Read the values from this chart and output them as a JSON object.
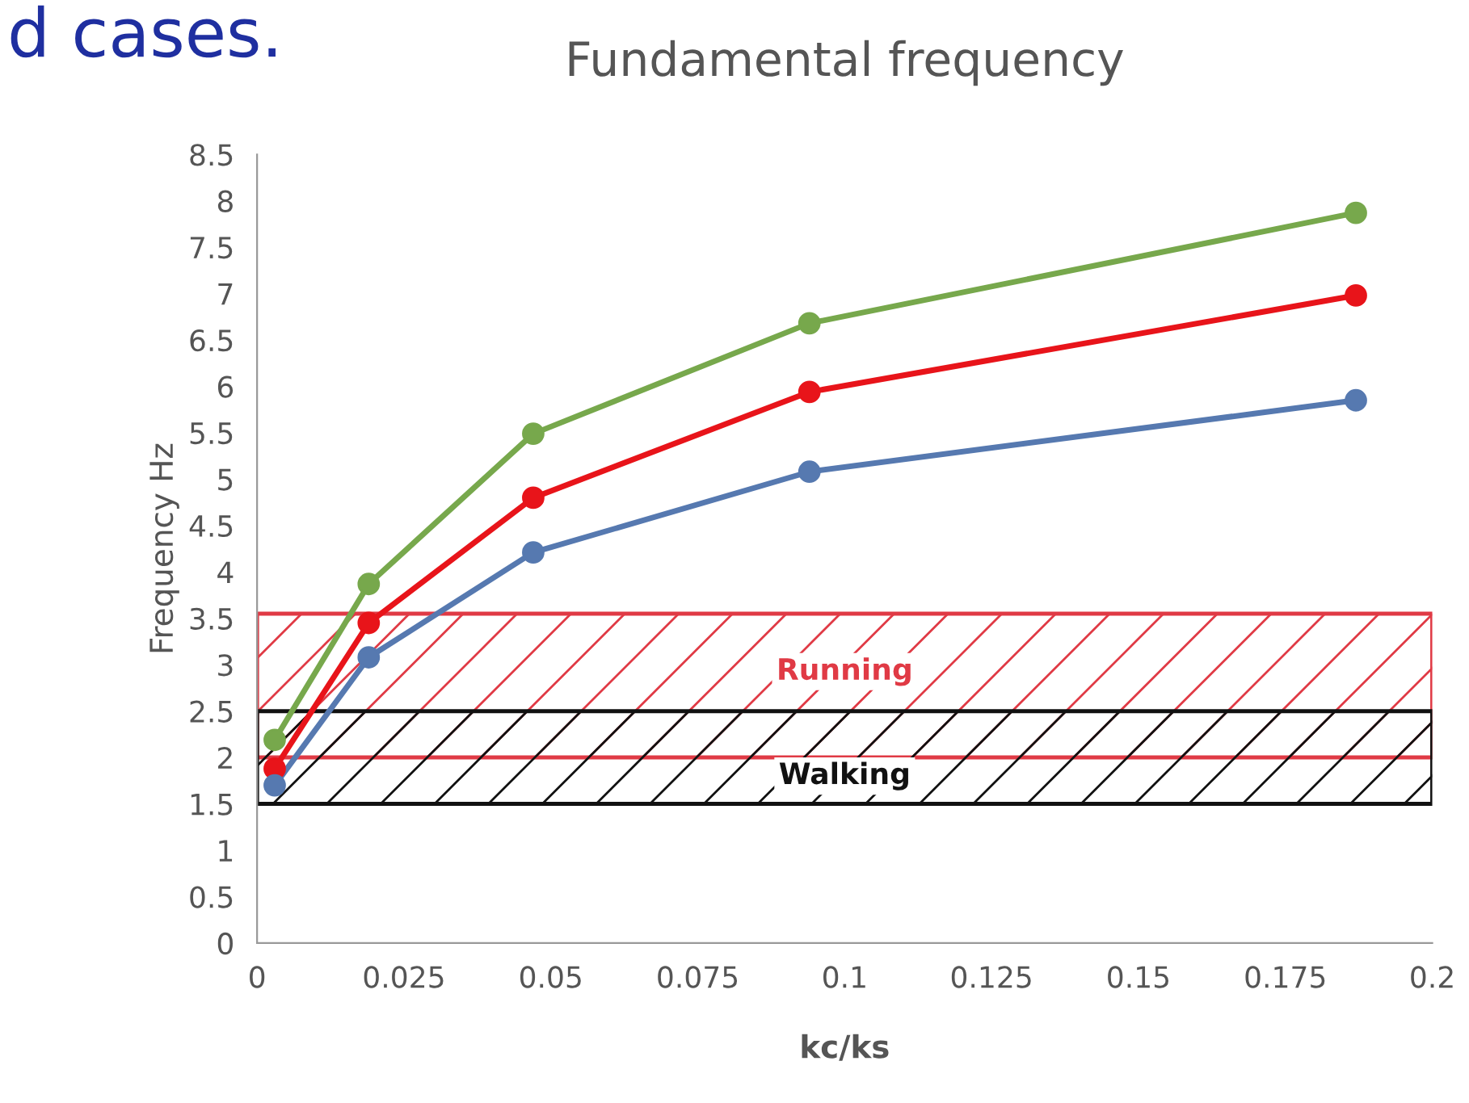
{
  "chart_data": {
    "type": "line",
    "title": "Fundamental frequency",
    "xlabel": "kc/ks",
    "ylabel": "Frequency Hz",
    "annotations": [
      "d cases."
    ],
    "x": [
      0.003,
      0.019,
      0.047,
      0.094,
      0.187
    ],
    "series": [
      {
        "color": "#77a84c",
        "values": [
          2.19,
          3.87,
          5.49,
          6.68,
          7.87
        ]
      },
      {
        "color": "#e8141a",
        "values": [
          1.88,
          3.45,
          4.8,
          5.94,
          6.98
        ]
      },
      {
        "color": "#5679b0",
        "values": [
          1.7,
          3.08,
          4.21,
          5.08,
          5.85
        ]
      }
    ],
    "bands": [
      {
        "axis": "y",
        "from": 2,
        "to": 3.55,
        "label": "Running",
        "color": "#e03a45"
      },
      {
        "axis": "y",
        "from": 1.5,
        "to": 2.5,
        "label": "Walking",
        "color": "#111111"
      }
    ],
    "xlim": [
      0,
      0.2
    ],
    "xticks": [
      0,
      0.025,
      0.05,
      0.075,
      0.1,
      0.125,
      0.15,
      0.175,
      0.2
    ],
    "ylim": [
      0,
      8.5
    ],
    "yticks": [
      0,
      0.5,
      1,
      1.5,
      2,
      2.5,
      3,
      3.5,
      4,
      4.5,
      5,
      5.5,
      6,
      6.5,
      7,
      7.5,
      8,
      8.5
    ],
    "grid": false,
    "legend": false,
    "marker": "circle",
    "line_style": "solid"
  }
}
